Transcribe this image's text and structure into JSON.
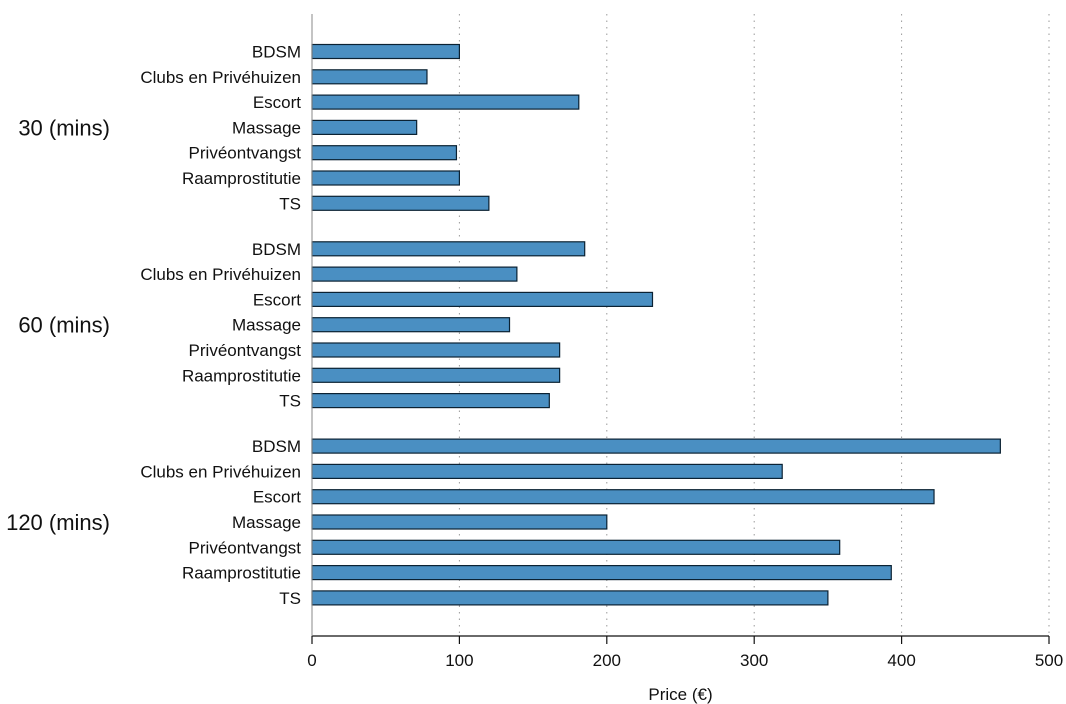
{
  "chart_data": {
    "type": "bar",
    "orientation": "horizontal",
    "xlabel": "Price (€)",
    "xlim": [
      0,
      500
    ],
    "xticks": [
      0,
      100,
      200,
      300,
      400,
      500
    ],
    "grid": "vertical dotted",
    "bar_color": "#4a8fc2",
    "groups": [
      {
        "label": "30 (mins)",
        "categories": [
          "BDSM",
          "Clubs en Privéhuizen",
          "Escort",
          "Massage",
          "Privéontvangst",
          "Raamprostitutie",
          "TS"
        ],
        "values": [
          100,
          78,
          181,
          71,
          98,
          100,
          120
        ]
      },
      {
        "label": "60 (mins)",
        "categories": [
          "BDSM",
          "Clubs en Privéhuizen",
          "Escort",
          "Massage",
          "Privéontvangst",
          "Raamprostitutie",
          "TS"
        ],
        "values": [
          185,
          139,
          231,
          134,
          168,
          168,
          161
        ]
      },
      {
        "label": "120 (mins)",
        "categories": [
          "BDSM",
          "Clubs en Privéhuizen",
          "Escort",
          "Massage",
          "Privéontvangst",
          "Raamprostitutie",
          "TS"
        ],
        "values": [
          467,
          319,
          422,
          200,
          358,
          393,
          350
        ]
      }
    ]
  }
}
